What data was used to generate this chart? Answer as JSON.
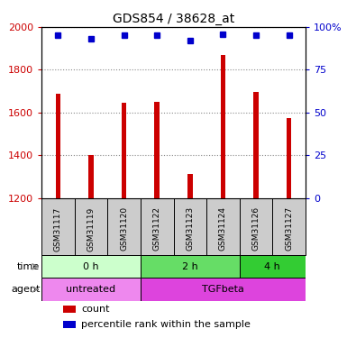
{
  "title": "GDS854 / 38628_at",
  "samples": [
    "GSM31117",
    "GSM31119",
    "GSM31120",
    "GSM31122",
    "GSM31123",
    "GSM31124",
    "GSM31126",
    "GSM31127"
  ],
  "count_values": [
    1690,
    1400,
    1645,
    1650,
    1315,
    1870,
    1695,
    1575
  ],
  "percentile_values": [
    95,
    93,
    95,
    95,
    92,
    96,
    95,
    95
  ],
  "ylim_left": [
    1200,
    2000
  ],
  "ylim_right": [
    0,
    100
  ],
  "yticks_left": [
    1200,
    1400,
    1600,
    1800,
    2000
  ],
  "yticks_right": [
    0,
    25,
    50,
    75,
    100
  ],
  "bar_color": "#cc0000",
  "dot_color": "#0000cc",
  "time_groups": [
    {
      "label": "0 h",
      "start": 0,
      "end": 3,
      "color": "#ccffcc"
    },
    {
      "label": "2 h",
      "start": 3,
      "end": 6,
      "color": "#66dd66"
    },
    {
      "label": "4 h",
      "start": 6,
      "end": 8,
      "color": "#33cc33"
    }
  ],
  "agent_groups": [
    {
      "label": "untreated",
      "start": 0,
      "end": 3,
      "color": "#ee88ee"
    },
    {
      "label": "TGFbeta",
      "start": 3,
      "end": 8,
      "color": "#dd44dd"
    }
  ],
  "grid_color": "#888888",
  "background_color": "#ffffff",
  "sample_bg_color": "#cccccc",
  "left_label_color": "#cc0000",
  "right_label_color": "#0000cc"
}
